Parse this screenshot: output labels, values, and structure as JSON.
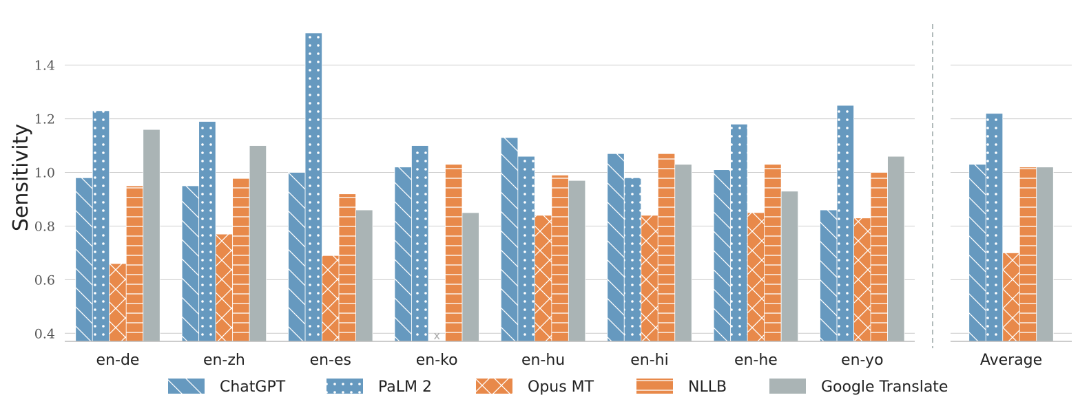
{
  "chart_data": {
    "type": "bar",
    "ylabel": "Sensitivity",
    "ylim": [
      0.37,
      1.53
    ],
    "yticks": [
      "0.4",
      "0.6",
      "0.8",
      "1.0",
      "1.2",
      "1.4"
    ],
    "categories": [
      "en-de",
      "en-zh",
      "en-es",
      "en-ko",
      "en-hu",
      "en-hi",
      "en-he",
      "en-yo"
    ],
    "average_label": "Average",
    "missing_marker": "x",
    "legend_position": "bottom",
    "grid": true,
    "series": [
      {
        "name": "ChatGPT",
        "color": "#6699bf",
        "pattern": "diagonal-hatch",
        "values": [
          0.98,
          0.95,
          1.0,
          1.02,
          1.13,
          1.07,
          1.01,
          0.86
        ],
        "average": 1.03
      },
      {
        "name": "PaLM 2",
        "color": "#6699bf",
        "pattern": "dots",
        "values": [
          1.23,
          1.19,
          1.52,
          1.1,
          1.06,
          0.98,
          1.18,
          1.25
        ],
        "average": 1.22
      },
      {
        "name": "Opus MT",
        "color": "#e8894a",
        "pattern": "crosshatch",
        "values": [
          0.66,
          0.77,
          0.69,
          null,
          0.84,
          0.84,
          0.85,
          0.83
        ],
        "average": 0.7
      },
      {
        "name": "NLLB",
        "color": "#e8894a",
        "pattern": "horizontal-lines",
        "values": [
          0.95,
          0.98,
          0.92,
          1.03,
          0.99,
          1.07,
          1.03,
          1.0
        ],
        "average": 1.02
      },
      {
        "name": "Google Translate",
        "color": "#aab4b5",
        "pattern": "solid",
        "values": [
          1.16,
          1.1,
          0.86,
          0.85,
          0.97,
          1.03,
          0.93,
          1.06
        ],
        "average": 1.02
      }
    ]
  }
}
